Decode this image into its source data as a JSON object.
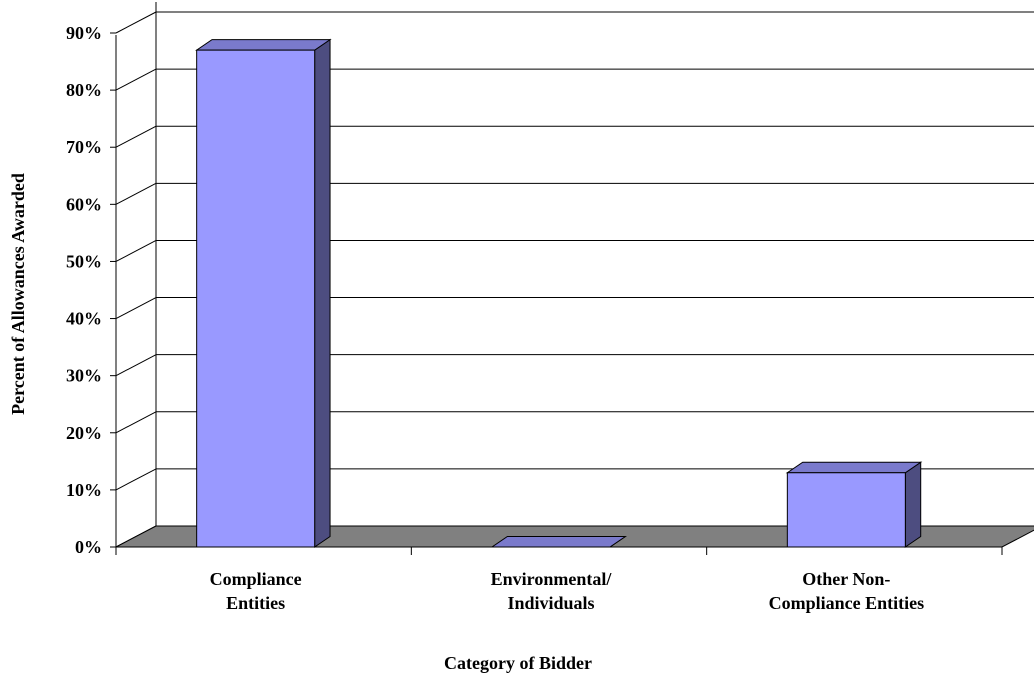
{
  "chart_data": {
    "type": "bar",
    "categories": [
      [
        "Compliance",
        "Entities"
      ],
      [
        "Environmental/",
        "Individuals"
      ],
      [
        "Other Non-",
        "Compliance Entities"
      ]
    ],
    "values": [
      87,
      0,
      13
    ],
    "ylabel": "Percent of Allowances Awarded",
    "xlabel": "Category of Bidder",
    "ylim": [
      0,
      90
    ],
    "yticks": [
      "0%",
      "10%",
      "20%",
      "30%",
      "40%",
      "50%",
      "60%",
      "70%",
      "80%",
      "90%"
    ],
    "grid": true,
    "colors": {
      "bar_front": "#9999ff",
      "bar_side": "#4d4d80",
      "bar_top": "#7a7acc",
      "floor": "#808080",
      "grid": "#000000"
    }
  }
}
